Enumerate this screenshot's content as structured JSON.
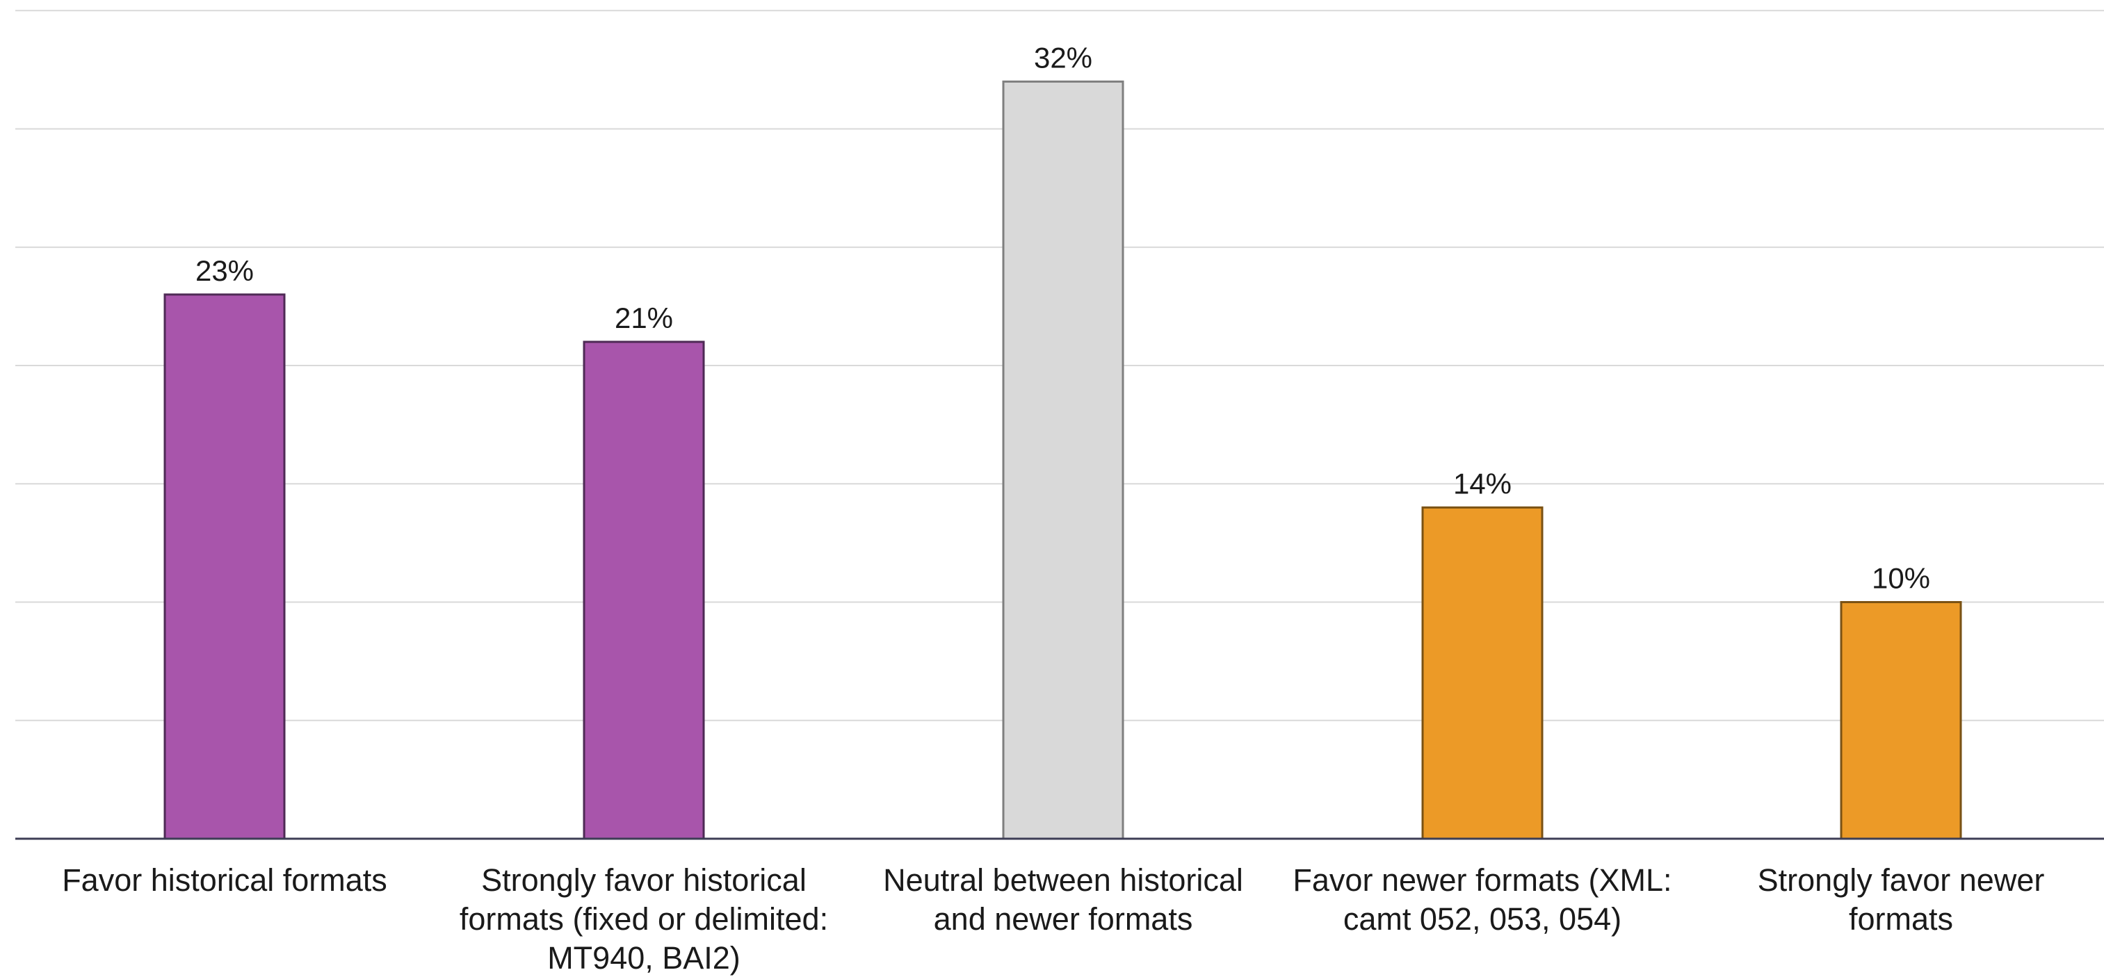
{
  "chart_data": {
    "type": "bar",
    "categories": [
      "Favor historical formats",
      "Strongly favor historical formats (fixed or delimited: MT940, BAI2)",
      "Neutral between historical and newer formats",
      "Favor newer formats (XML: camt 052, 053, 054)",
      "Strongly favor newer formats"
    ],
    "category_lines": [
      [
        "Favor historical formats"
      ],
      [
        "Strongly favor historical",
        "formats (fixed or delimited:",
        "MT940, BAI2)"
      ],
      [
        "Neutral between historical",
        "and newer formats"
      ],
      [
        "Favor newer formats (XML:",
        "camt 052, 053, 054)"
      ],
      [
        "Strongly favor newer",
        "formats"
      ]
    ],
    "values": [
      23,
      21,
      32,
      14,
      10
    ],
    "value_labels": [
      "23%",
      "21%",
      "32%",
      "14%",
      "10%"
    ],
    "bar_colors": [
      "#a855ab",
      "#a855ab",
      "#d9d9d9",
      "#ec9a27",
      "#ec9a27"
    ],
    "bar_edge_colors": [
      "#4e2a55",
      "#4e2a55",
      "#7f7f7f",
      "#7a5214",
      "#7a5214"
    ],
    "ylim": [
      0,
      35
    ],
    "gridlines": true,
    "y_axis_labels_shown": false,
    "title": "",
    "xlabel": "",
    "ylabel": ""
  }
}
